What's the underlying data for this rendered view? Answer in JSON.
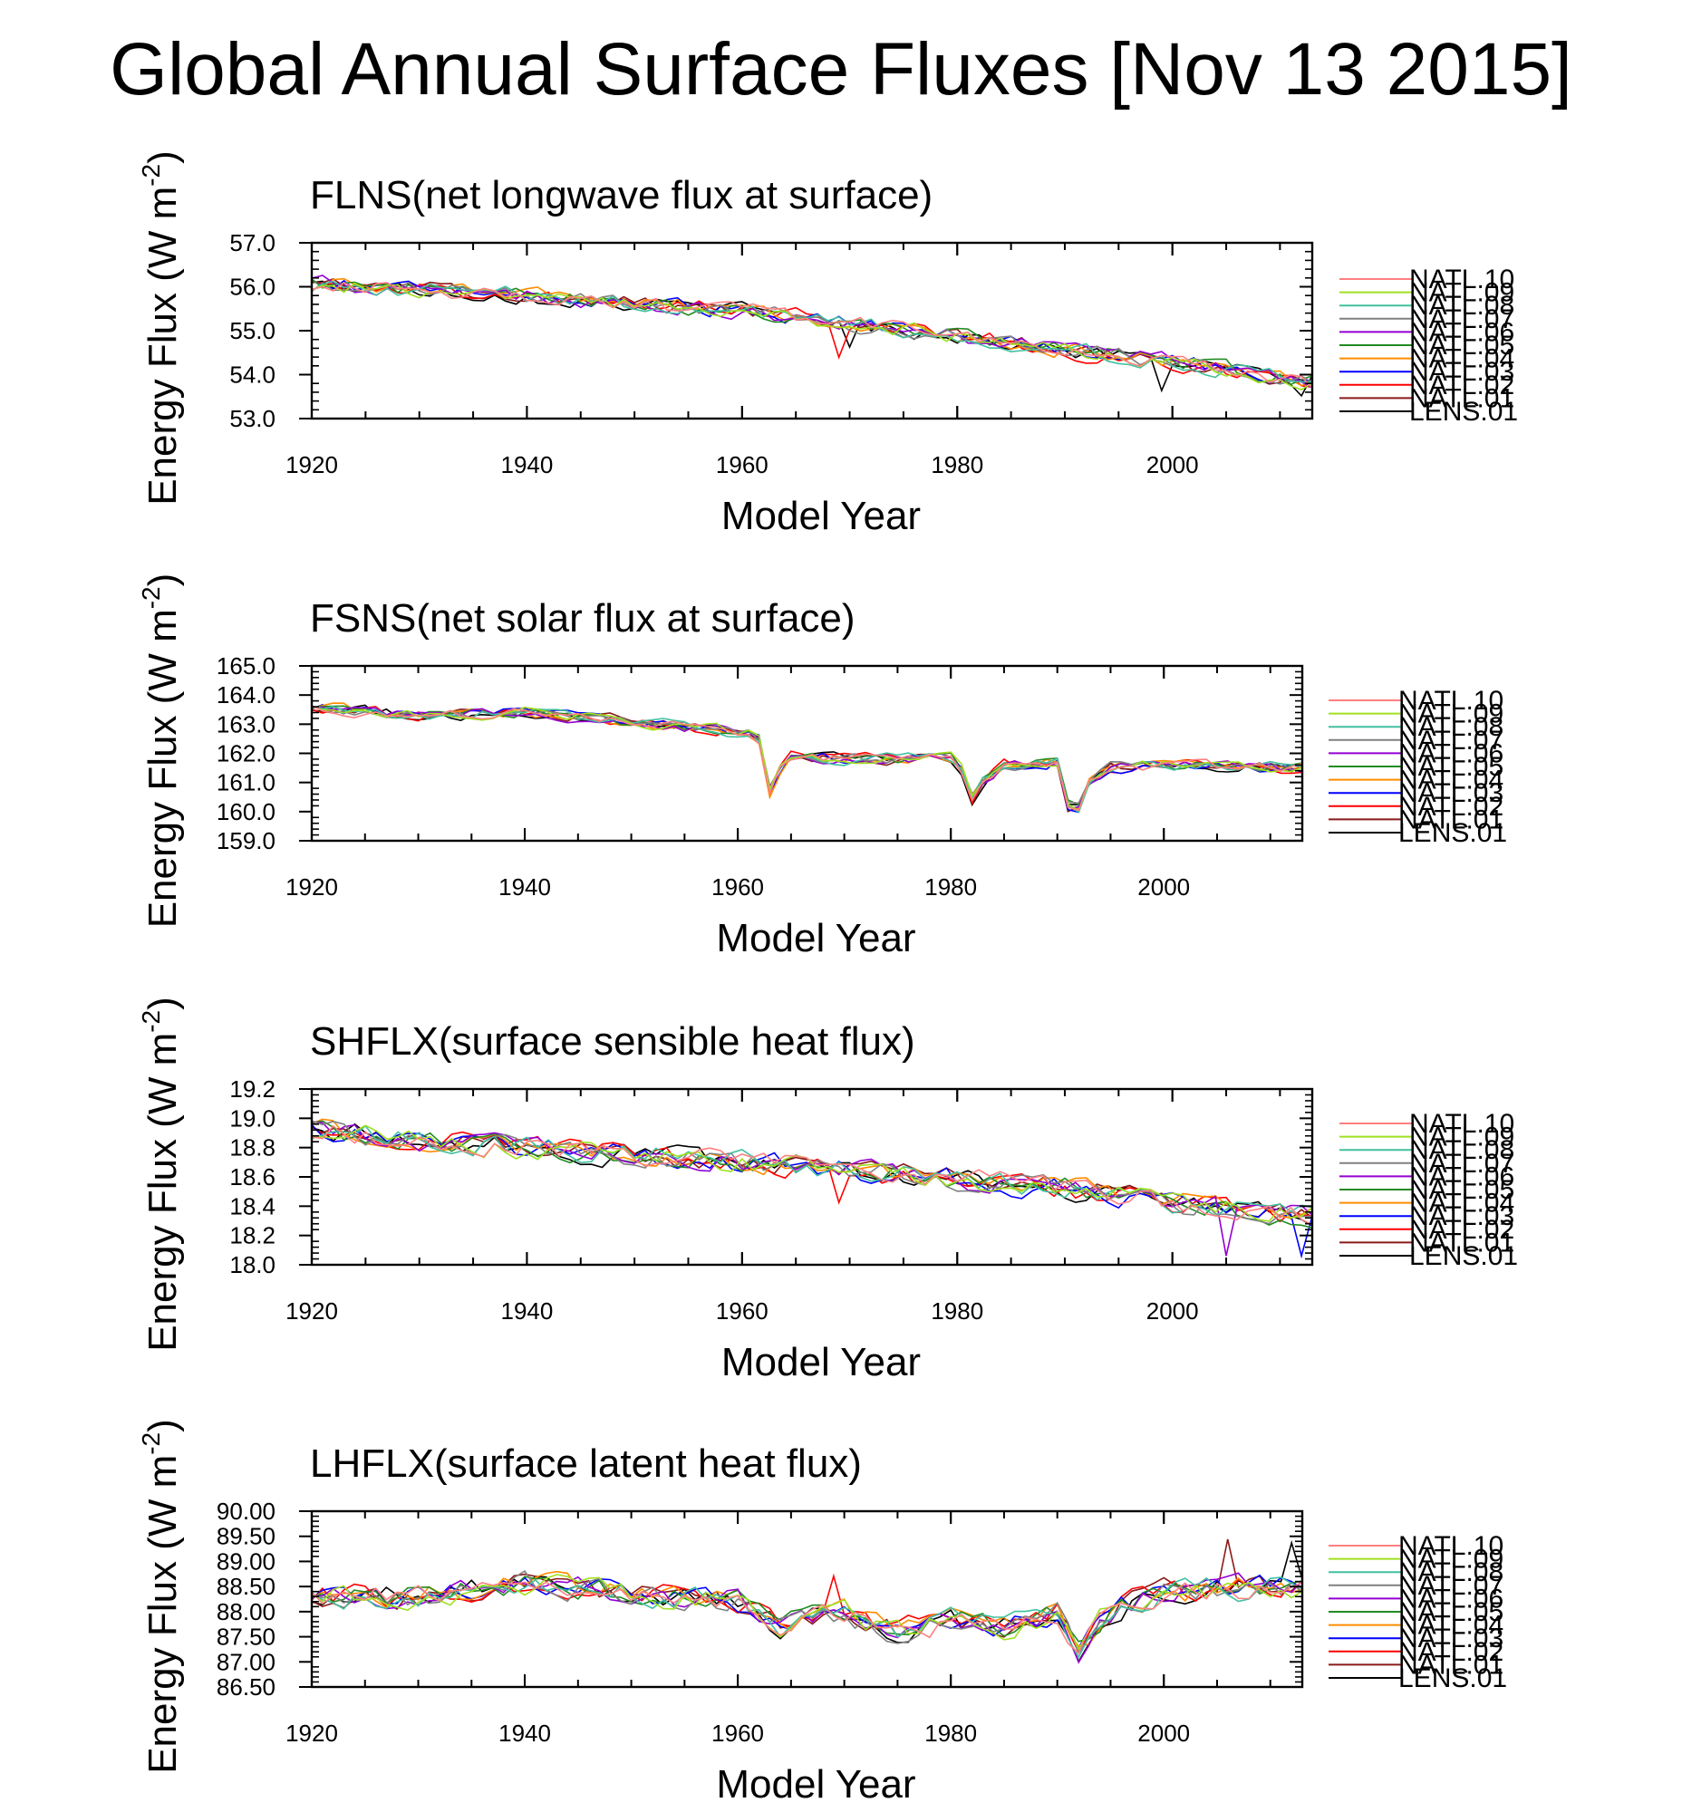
{
  "figure": {
    "title": "Global Annual Surface Fluxes [Nov 13 2015]"
  },
  "colors": {
    "LENS.01": "#000000",
    "NATL.01": "#8b1a1a",
    "NATL.02": "#ff0000",
    "NATL.03": "#0000ff",
    "NATL.04": "#ff8c00",
    "NATL.05": "#228b22",
    "NATL.06": "#9400d3",
    "NATL.07": "#808080",
    "NATL.08": "#40c0a0",
    "NATL.09": "#a0e020",
    "NATL.10": "#ff8080"
  },
  "chart_data": [
    {
      "type": "line",
      "title": "FLNS(net longwave flux at surface)",
      "xlabel": "Model Year",
      "ylabel": "Energy Flux (W m",
      "ylabel_sup": "-2",
      "ylabel_tail": ")",
      "xlim": [
        1920,
        2013
      ],
      "ylim": [
        53.0,
        57.0
      ],
      "xticks": [
        1920,
        1940,
        1960,
        1980,
        2000
      ],
      "xtick_labels": [
        "1920",
        "1940",
        "1960",
        "1980",
        "2000"
      ],
      "yticks": [
        53.0,
        54.0,
        55.0,
        56.0,
        57.0
      ],
      "ytick_labels": [
        "53.0",
        "54.0",
        "55.0",
        "56.0",
        "57.0"
      ],
      "legend": [
        "NATL.10",
        "NATL.09",
        "NATL.08",
        "NATL.07",
        "NATL.06",
        "NATL.05",
        "NATL.04",
        "NATL.03",
        "NATL.02",
        "NATL.01",
        "LENS.01"
      ],
      "mean": {
        "x": [
          1920,
          1930,
          1940,
          1950,
          1960,
          1966,
          1970,
          1980,
          1990,
          2000,
          2013
        ],
        "y": [
          56.05,
          55.95,
          55.8,
          55.6,
          55.45,
          55.3,
          55.15,
          54.9,
          54.55,
          54.3,
          53.8
        ]
      },
      "noise": 0.22,
      "events": [
        {
          "year": 1969,
          "depth": 0.8,
          "series": "NATL.02"
        },
        {
          "year": 1970,
          "depth": 0.6,
          "series": "LENS.01"
        },
        {
          "year": 1999,
          "depth": 0.6,
          "series": "LENS.01"
        },
        {
          "year": 2012,
          "depth": 0.4,
          "series": "LENS.01"
        }
      ],
      "seed": 11
    },
    {
      "type": "line",
      "title": "FSNS(net solar flux at surface)",
      "xlabel": "Model Year",
      "ylabel": "Energy Flux (W m",
      "ylabel_sup": "-2",
      "ylabel_tail": ")",
      "xlim": [
        1920,
        2013
      ],
      "ylim": [
        159.0,
        165.0
      ],
      "xticks": [
        1920,
        1940,
        1960,
        1980,
        2000
      ],
      "xtick_labels": [
        "1920",
        "1940",
        "1960",
        "1980",
        "2000"
      ],
      "yticks": [
        159.0,
        160.0,
        161.0,
        162.0,
        163.0,
        164.0,
        165.0
      ],
      "ytick_labels": [
        "159.0",
        "160.0",
        "161.0",
        "162.0",
        "163.0",
        "164.0",
        "165.0"
      ],
      "legend": [
        "NATL.10",
        "NATL.09",
        "NATL.08",
        "NATL.07",
        "NATL.06",
        "NATL.05",
        "NATL.04",
        "NATL.03",
        "NATL.02",
        "NATL.01",
        "LENS.01"
      ],
      "mean": {
        "x": [
          1920,
          1930,
          1940,
          1950,
          1961,
          1962,
          1963,
          1964,
          1965,
          1970,
          1980,
          1981,
          1982,
          1983,
          1985,
          1990,
          1991,
          1992,
          1993,
          1995,
          2000,
          2013
        ],
        "y": [
          163.6,
          163.3,
          163.4,
          163.1,
          162.7,
          162.5,
          160.7,
          161.5,
          161.9,
          161.8,
          161.8,
          161.4,
          160.4,
          161.0,
          161.6,
          161.7,
          160.2,
          160.1,
          161.0,
          161.5,
          161.6,
          161.5
        ]
      },
      "noise": 0.22,
      "events": [],
      "seed": 23
    },
    {
      "type": "line",
      "title": "SHFLX(surface sensible heat flux)",
      "xlabel": "Model Year",
      "ylabel": "Energy Flux (W m",
      "ylabel_sup": "-2",
      "ylabel_tail": ")",
      "xlim": [
        1920,
        2013
      ],
      "ylim": [
        18.0,
        19.2
      ],
      "xticks": [
        1920,
        1940,
        1960,
        1980,
        2000
      ],
      "xtick_labels": [
        "1920",
        "1940",
        "1960",
        "1980",
        "2000"
      ],
      "yticks": [
        18.0,
        18.2,
        18.4,
        18.6,
        18.8,
        19.0,
        19.2
      ],
      "ytick_labels": [
        "18.0",
        "18.2",
        "18.4",
        "18.6",
        "18.8",
        "19.0",
        "19.2"
      ],
      "legend": [
        "NATL.10",
        "NATL.09",
        "NATL.08",
        "NATL.07",
        "NATL.06",
        "NATL.05",
        "NATL.04",
        "NATL.03",
        "NATL.02",
        "NATL.01",
        "LENS.01"
      ],
      "mean": {
        "x": [
          1920,
          1930,
          1940,
          1950,
          1960,
          1970,
          1980,
          1990,
          2000,
          2013
        ],
        "y": [
          18.92,
          18.85,
          18.8,
          18.75,
          18.7,
          18.65,
          18.58,
          18.52,
          18.43,
          18.33
        ]
      },
      "noise": 0.09,
      "events": [
        {
          "year": 1969,
          "depth": 0.25,
          "series": "NATL.02"
        },
        {
          "year": 2005,
          "depth": 0.3,
          "series": "NATL.06"
        },
        {
          "year": 2012,
          "depth": 0.22,
          "series": "NATL.03"
        }
      ],
      "seed": 37
    },
    {
      "type": "line",
      "title": "LHFLX(surface latent heat flux)",
      "xlabel": "Model Year",
      "ylabel": "Energy Flux (W m",
      "ylabel_sup": "-2",
      "ylabel_tail": ")",
      "xlim": [
        1920,
        2013
      ],
      "ylim": [
        86.5,
        90.0
      ],
      "xticks": [
        1920,
        1940,
        1960,
        1980,
        2000
      ],
      "xtick_labels": [
        "1920",
        "1940",
        "1960",
        "1980",
        "2000"
      ],
      "yticks": [
        86.5,
        87.0,
        87.5,
        88.0,
        88.5,
        89.0,
        89.5,
        90.0
      ],
      "ytick_labels": [
        "86.50",
        "87.00",
        "87.50",
        "88.00",
        "88.50",
        "89.00",
        "89.50",
        "90.00"
      ],
      "legend": [
        "NATL.10",
        "NATL.09",
        "NATL.08",
        "NATL.07",
        "NATL.06",
        "NATL.05",
        "NATL.04",
        "NATL.03",
        "NATL.02",
        "NATL.01",
        "LENS.01"
      ],
      "mean": {
        "x": [
          1920,
          1930,
          1940,
          1950,
          1960,
          1964,
          1966,
          1970,
          1975,
          1980,
          1985,
          1990,
          1992,
          1994,
          1996,
          2000,
          2013
        ],
        "y": [
          88.3,
          88.3,
          88.55,
          88.35,
          88.2,
          87.7,
          87.8,
          87.95,
          87.6,
          87.8,
          87.7,
          88.0,
          87.2,
          87.8,
          88.1,
          88.4,
          88.5
        ]
      },
      "noise": 0.28,
      "events": [
        {
          "year": 1969,
          "depth": -0.9,
          "series": "NATL.02"
        },
        {
          "year": 2006,
          "depth": -0.9,
          "series": "NATL.01"
        },
        {
          "year": 2012,
          "depth": -0.7,
          "series": "LENS.01"
        }
      ],
      "seed": 53
    }
  ]
}
